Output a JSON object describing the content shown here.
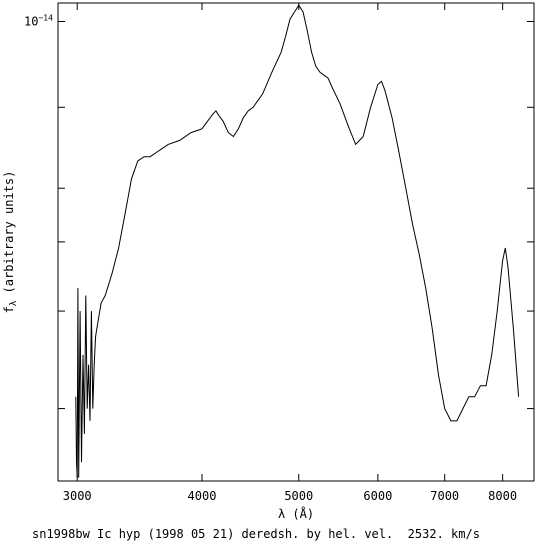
{
  "chart_data": {
    "type": "line",
    "xlabel": "λ (Å)",
    "ylabel": "f_λ (arbitrary units)",
    "caption": "sn1998bw Ic hyp (1998 05 21) deredsh. by hel. vel.  2532. km/s",
    "x_scale": "log",
    "y_scale": "log",
    "xlim": [
      2870,
      8600
    ],
    "ylim": [
      0.148,
      1.08
    ],
    "x_ticks": [
      {
        "value": 3000,
        "label": "3000"
      },
      {
        "value": 4000,
        "label": "4000"
      },
      {
        "value": 5000,
        "label": "5000"
      },
      {
        "value": 6000,
        "label": "6000"
      },
      {
        "value": 7000,
        "label": "7000"
      },
      {
        "value": 8000,
        "label": "8000"
      }
    ],
    "y_ticks": [
      {
        "value": 1.0,
        "label_base": "10",
        "label_exp": "−14"
      },
      {
        "value": 0.7,
        "label_base": "",
        "label_exp": ""
      },
      {
        "value": 0.5,
        "label_base": "",
        "label_exp": ""
      },
      {
        "value": 0.4,
        "label_base": "",
        "label_exp": ""
      },
      {
        "value": 0.3,
        "label_base": "",
        "label_exp": ""
      },
      {
        "value": 0.2,
        "label_base": "",
        "label_exp": ""
      }
    ],
    "series": [
      {
        "units": "10^-14",
        "x": [
          2990,
          2995,
          3000,
          3005,
          3010,
          3020,
          3030,
          3040,
          3050,
          3060,
          3070,
          3080,
          3090,
          3100,
          3110,
          3120,
          3130,
          3150,
          3170,
          3200,
          3250,
          3300,
          3350,
          3400,
          3450,
          3500,
          3550,
          3600,
          3650,
          3700,
          3800,
          3900,
          4000,
          4050,
          4100,
          4130,
          4150,
          4200,
          4250,
          4300,
          4350,
          4400,
          4450,
          4500,
          4600,
          4700,
          4800,
          4850,
          4900,
          4950,
          5000,
          5050,
          5100,
          5150,
          5200,
          5250,
          5300,
          5350,
          5400,
          5500,
          5600,
          5700,
          5800,
          5900,
          6000,
          6050,
          6100,
          6200,
          6300,
          6400,
          6500,
          6600,
          6700,
          6800,
          6900,
          7000,
          7100,
          7200,
          7300,
          7400,
          7500,
          7600,
          7700,
          7800,
          7900,
          8000,
          8050,
          8100,
          8200,
          8300
        ],
        "values": [
          0.21,
          0.16,
          0.15,
          0.33,
          0.15,
          0.3,
          0.16,
          0.25,
          0.18,
          0.32,
          0.2,
          0.24,
          0.19,
          0.3,
          0.2,
          0.24,
          0.27,
          0.29,
          0.31,
          0.32,
          0.35,
          0.39,
          0.45,
          0.52,
          0.56,
          0.57,
          0.57,
          0.58,
          0.59,
          0.6,
          0.61,
          0.63,
          0.64,
          0.66,
          0.68,
          0.69,
          0.68,
          0.66,
          0.63,
          0.62,
          0.64,
          0.67,
          0.69,
          0.7,
          0.74,
          0.81,
          0.88,
          0.94,
          1.01,
          1.04,
          1.07,
          1.04,
          0.96,
          0.88,
          0.83,
          0.81,
          0.8,
          0.79,
          0.76,
          0.71,
          0.65,
          0.6,
          0.62,
          0.7,
          0.77,
          0.78,
          0.75,
          0.67,
          0.58,
          0.5,
          0.43,
          0.38,
          0.33,
          0.28,
          0.23,
          0.2,
          0.19,
          0.19,
          0.2,
          0.21,
          0.21,
          0.22,
          0.22,
          0.25,
          0.3,
          0.37,
          0.39,
          0.36,
          0.28,
          0.21
        ]
      }
    ]
  }
}
